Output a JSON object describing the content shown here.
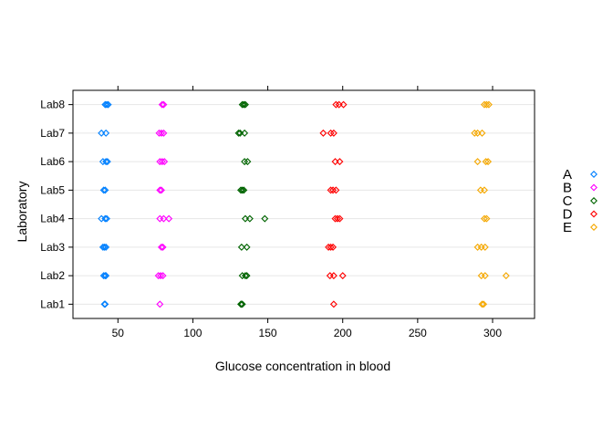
{
  "chart_data": {
    "type": "scatter",
    "title": "",
    "xlabel": "Glucose concentration in blood",
    "ylabel": "Laboratory",
    "xlim": [
      20,
      328
    ],
    "xticks": [
      50,
      100,
      150,
      200,
      250,
      300
    ],
    "categories": [
      "Lab1",
      "Lab2",
      "Lab3",
      "Lab4",
      "Lab5",
      "Lab6",
      "Lab7",
      "Lab8"
    ],
    "grid": true,
    "legend_position": "right",
    "series": [
      {
        "name": "A",
        "color": "#0080ff",
        "points": [
          {
            "lab": "Lab1",
            "values": [
              41,
              41.5
            ]
          },
          {
            "lab": "Lab2",
            "values": [
              40.5,
              41.5,
              42
            ]
          },
          {
            "lab": "Lab3",
            "values": [
              40,
              41,
              42
            ]
          },
          {
            "lab": "Lab4",
            "values": [
              39,
              41.5,
              42.5
            ]
          },
          {
            "lab": "Lab5",
            "values": [
              40.5,
              41.5
            ]
          },
          {
            "lab": "Lab6",
            "values": [
              40,
              42,
              43
            ]
          },
          {
            "lab": "Lab7",
            "values": [
              39,
              42
            ]
          },
          {
            "lab": "Lab8",
            "values": [
              41.5,
              42.5,
              43.5
            ]
          }
        ]
      },
      {
        "name": "B",
        "color": "#ff00ff",
        "points": [
          {
            "lab": "Lab1",
            "values": [
              78
            ]
          },
          {
            "lab": "Lab2",
            "values": [
              77,
              78.5,
              80
            ]
          },
          {
            "lab": "Lab3",
            "values": [
              79,
              80
            ]
          },
          {
            "lab": "Lab4",
            "values": [
              78,
              80.5,
              84
            ]
          },
          {
            "lab": "Lab5",
            "values": [
              78,
              79
            ]
          },
          {
            "lab": "Lab6",
            "values": [
              78,
              79.5,
              81
            ]
          },
          {
            "lab": "Lab7",
            "values": [
              77.5,
              79,
              80.5
            ]
          },
          {
            "lab": "Lab8",
            "values": [
              79.5,
              80.5
            ]
          }
        ]
      },
      {
        "name": "C",
        "color": "#006400",
        "points": [
          {
            "lab": "Lab1",
            "values": [
              132,
              132.5,
              133
            ]
          },
          {
            "lab": "Lab2",
            "values": [
              133,
              135,
              136
            ]
          },
          {
            "lab": "Lab3",
            "values": [
              132.5,
              136
            ]
          },
          {
            "lab": "Lab4",
            "values": [
              135,
              138,
              148
            ]
          },
          {
            "lab": "Lab5",
            "values": [
              132,
              133,
              134
            ]
          },
          {
            "lab": "Lab6",
            "values": [
              134.5,
              136.5
            ]
          },
          {
            "lab": "Lab7",
            "values": [
              130.5,
              131.5,
              134.5
            ]
          },
          {
            "lab": "Lab8",
            "values": [
              133,
              134,
              135
            ]
          }
        ]
      },
      {
        "name": "D",
        "color": "#ff0000",
        "points": [
          {
            "lab": "Lab1",
            "values": [
              194
            ]
          },
          {
            "lab": "Lab2",
            "values": [
              191.5,
              194,
              200
            ]
          },
          {
            "lab": "Lab3",
            "values": [
              190.5,
              192,
              193.5
            ]
          },
          {
            "lab": "Lab4",
            "values": [
              195,
              196.5,
              198
            ]
          },
          {
            "lab": "Lab5",
            "values": [
              192,
              193.5,
              195.5
            ]
          },
          {
            "lab": "Lab6",
            "values": [
              195,
              198
            ]
          },
          {
            "lab": "Lab7",
            "values": [
              187,
              192,
              194
            ]
          },
          {
            "lab": "Lab8",
            "values": [
              195.5,
              197.5,
              200.5
            ]
          }
        ]
      },
      {
        "name": "E",
        "color": "#f5a800",
        "points": [
          {
            "lab": "Lab1",
            "values": [
              293,
              294
            ]
          },
          {
            "lab": "Lab2",
            "values": [
              292.5,
              295,
              309
            ]
          },
          {
            "lab": "Lab3",
            "values": [
              290,
              292.5,
              295
            ]
          },
          {
            "lab": "Lab4",
            "values": [
              294.5,
              296
            ]
          },
          {
            "lab": "Lab5",
            "values": [
              292,
              294.5
            ]
          },
          {
            "lab": "Lab6",
            "values": [
              290,
              295.5,
              297
            ]
          },
          {
            "lab": "Lab7",
            "values": [
              288,
              290,
              293
            ]
          },
          {
            "lab": "Lab8",
            "values": [
              294.5,
              296,
              297.5
            ]
          }
        ]
      }
    ]
  }
}
